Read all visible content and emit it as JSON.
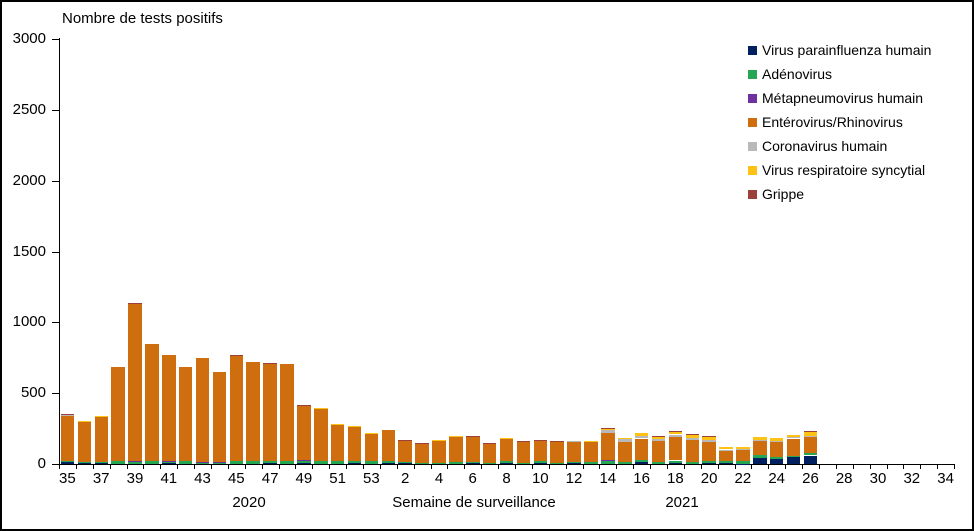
{
  "title": "Nombre de tests positifs",
  "x_axis_title": "Semaine de surveillance",
  "year_labels": [
    "2020",
    "2021"
  ],
  "colors": {
    "axis": "#000000",
    "background": "#ffffff"
  },
  "chart_data": {
    "type": "bar",
    "stacked": true,
    "title": "Nombre de tests positifs",
    "xlabel": "Semaine de surveillance",
    "ylabel": "Nombre de tests positifs",
    "ylim": [
      0,
      3000
    ],
    "yticks": [
      0,
      500,
      1000,
      1500,
      2000,
      2500,
      3000
    ],
    "grid": false,
    "legend_position": "top-right",
    "x_years": [
      {
        "label": "2020",
        "weeks": "35-53"
      },
      {
        "label": "2021",
        "weeks": "1-34"
      }
    ],
    "categories": [
      "35",
      "36",
      "37",
      "38",
      "39",
      "40",
      "41",
      "42",
      "43",
      "44",
      "45",
      "46",
      "47",
      "48",
      "49",
      "50",
      "51",
      "52",
      "53",
      "1",
      "2",
      "3",
      "4",
      "5",
      "6",
      "7",
      "8",
      "9",
      "10",
      "11",
      "12",
      "13",
      "14",
      "15",
      "16",
      "17",
      "18",
      "19",
      "20",
      "21",
      "22",
      "23",
      "24",
      "25",
      "26",
      "27",
      "28",
      "29",
      "30",
      "31",
      "32",
      "33",
      "34"
    ],
    "labeled_categories": [
      "35",
      "37",
      "39",
      "41",
      "43",
      "45",
      "47",
      "49",
      "51",
      "53",
      "2",
      "4",
      "6",
      "8",
      "10",
      "12",
      "14",
      "16",
      "18",
      "20",
      "22",
      "24",
      "26",
      "28",
      "30",
      "32",
      "34"
    ],
    "series": [
      {
        "name": "Virus parainfluenza humain",
        "color": "#002060",
        "values": [
          15,
          8,
          8,
          0,
          0,
          0,
          6,
          0,
          0,
          0,
          0,
          0,
          5,
          0,
          8,
          0,
          0,
          5,
          0,
          8,
          6,
          0,
          0,
          0,
          5,
          0,
          4,
          0,
          10,
          0,
          8,
          0,
          0,
          0,
          15,
          0,
          5,
          0,
          5,
          8,
          3,
          40,
          38,
          47,
          60,
          0,
          0,
          0,
          0,
          0,
          0,
          0,
          0
        ]
      },
      {
        "name": "Adénovirus",
        "color": "#24A653",
        "values": [
          8,
          5,
          8,
          20,
          14,
          18,
          12,
          20,
          10,
          8,
          22,
          22,
          16,
          18,
          18,
          22,
          18,
          16,
          22,
          14,
          7,
          5,
          6,
          16,
          8,
          9,
          18,
          7,
          9,
          6,
          5,
          13,
          25,
          12,
          12,
          14,
          20,
          12,
          14,
          14,
          22,
          22,
          14,
          10,
          16,
          0,
          0,
          0,
          0,
          0,
          0,
          0,
          0
        ]
      },
      {
        "name": "Métapneumovirus humain",
        "color": "#7030A0",
        "values": [
          0,
          0,
          0,
          0,
          6,
          0,
          4,
          0,
          5,
          4,
          0,
          0,
          0,
          0,
          3,
          0,
          0,
          0,
          0,
          0,
          0,
          0,
          0,
          0,
          0,
          0,
          0,
          0,
          0,
          0,
          0,
          0,
          3,
          0,
          0,
          0,
          0,
          0,
          0,
          0,
          0,
          0,
          0,
          0,
          0,
          0,
          0,
          0,
          0,
          0,
          0,
          0,
          0
        ]
      },
      {
        "name": "Entérovirus/Rhinovirus",
        "color": "#CE6E0E",
        "values": [
          316,
          288,
          320,
          664,
          1113,
          828,
          745,
          664,
          733,
          637,
          744,
          697,
          689,
          687,
          381,
          369,
          263,
          246,
          189,
          221,
          149,
          135,
          160,
          173,
          182,
          137,
          155,
          148,
          149,
          149,
          148,
          142,
          189,
          144,
          153,
          146,
          167,
          155,
          139,
          70,
          74,
          101,
          104,
          123,
          115,
          0,
          0,
          0,
          0,
          0,
          0,
          0,
          0
        ]
      },
      {
        "name": "Coronavirus humain",
        "color": "#B9B9B9",
        "values": [
          5,
          0,
          0,
          0,
          0,
          0,
          0,
          0,
          0,
          0,
          0,
          0,
          0,
          0,
          5,
          0,
          0,
          0,
          0,
          0,
          0,
          0,
          0,
          0,
          0,
          0,
          0,
          0,
          0,
          0,
          4,
          5,
          22,
          18,
          18,
          18,
          16,
          18,
          14,
          10,
          8,
          9,
          8,
          8,
          10,
          0,
          0,
          0,
          0,
          0,
          0,
          0,
          0
        ]
      },
      {
        "name": "Virus respiratoire syncytial",
        "color": "#FDC213",
        "values": [
          0,
          6,
          6,
          0,
          0,
          0,
          0,
          0,
          0,
          0,
          0,
          0,
          0,
          0,
          0,
          7,
          5,
          5,
          5,
          0,
          0,
          0,
          6,
          6,
          0,
          0,
          6,
          0,
          0,
          0,
          0,
          5,
          6,
          12,
          20,
          18,
          24,
          22,
          20,
          17,
          16,
          16,
          17,
          19,
          25,
          0,
          0,
          0,
          0,
          0,
          0,
          0,
          0
        ]
      },
      {
        "name": "Grippe",
        "color": "#9C4139",
        "values": [
          6,
          0,
          0,
          0,
          4,
          0,
          0,
          0,
          0,
          0,
          4,
          0,
          4,
          0,
          4,
          0,
          0,
          0,
          0,
          0,
          5,
          6,
          0,
          0,
          5,
          3,
          0,
          5,
          4,
          5,
          0,
          0,
          8,
          0,
          0,
          4,
          3,
          4,
          3,
          0,
          0,
          0,
          0,
          0,
          4,
          0,
          0,
          0,
          0,
          0,
          0,
          0,
          0
        ]
      }
    ]
  }
}
